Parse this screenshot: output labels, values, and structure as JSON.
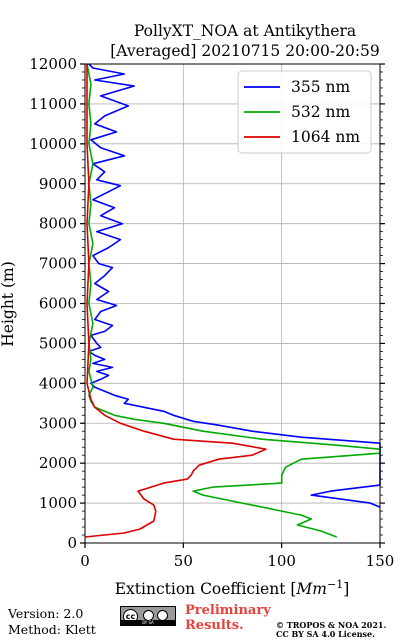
{
  "header": {
    "title_line1": "PollyXT_NOA at Antikythera",
    "title_line2": "[Averaged] 20210715 20:00-20:59"
  },
  "footer": {
    "version": "Version: 2.0",
    "method": "Method: Klett",
    "preliminary_line1": "Preliminary",
    "preliminary_line2": "Results.",
    "copyright_line1": "© TROPOS & NOA 2021.",
    "copyright_line2": "CC BY SA 4.0 License.",
    "license_badge": "cc-by-sa-icon"
  },
  "chart_data": {
    "type": "line",
    "title": "PollyXT_NOA at Antikythera [Averaged] 20210715 20:00-20:59",
    "xlabel": "Extinction Coefficient [Mm⁻¹]",
    "ylabel": "Height (m)",
    "xlim": [
      0,
      150
    ],
    "ylim": [
      0,
      12000
    ],
    "x_ticks": [
      0,
      50,
      100,
      150
    ],
    "y_ticks": [
      0,
      1000,
      2000,
      3000,
      4000,
      5000,
      6000,
      7000,
      8000,
      9000,
      10000,
      11000,
      12000
    ],
    "grid": true,
    "legend_position": "top-right",
    "series": [
      {
        "name": "355 nm",
        "color": "#0000ff",
        "points": [
          [
            150,
            900
          ],
          [
            145,
            1000
          ],
          [
            130,
            1100
          ],
          [
            115,
            1200
          ],
          [
            125,
            1300
          ],
          [
            150,
            1450
          ],
          [
            150,
            2500
          ],
          [
            110,
            2650
          ],
          [
            85,
            2800
          ],
          [
            68,
            2950
          ],
          [
            55,
            3050
          ],
          [
            45,
            3200
          ],
          [
            40,
            3300
          ],
          [
            30,
            3400
          ],
          [
            20,
            3500
          ],
          [
            22,
            3600
          ],
          [
            15,
            3700
          ],
          [
            10,
            3800
          ],
          [
            5,
            3900
          ],
          [
            3,
            4000
          ],
          [
            8,
            4100
          ],
          [
            12,
            4200
          ],
          [
            6,
            4300
          ],
          [
            14,
            4400
          ],
          [
            4,
            4500
          ],
          [
            10,
            4600
          ],
          [
            5,
            4700
          ],
          [
            2,
            4800
          ],
          [
            8,
            4900
          ],
          [
            6,
            5000
          ],
          [
            3,
            5200
          ],
          [
            10,
            5300
          ],
          [
            14,
            5450
          ],
          [
            5,
            5600
          ],
          [
            8,
            5800
          ],
          [
            16,
            5950
          ],
          [
            6,
            6100
          ],
          [
            12,
            6300
          ],
          [
            5,
            6500
          ],
          [
            10,
            6700
          ],
          [
            14,
            6900
          ],
          [
            7,
            7000
          ],
          [
            4,
            7200
          ],
          [
            12,
            7400
          ],
          [
            18,
            7600
          ],
          [
            6,
            7800
          ],
          [
            19,
            8000
          ],
          [
            8,
            8200
          ],
          [
            15,
            8400
          ],
          [
            4,
            8600
          ],
          [
            12,
            8800
          ],
          [
            18,
            8950
          ],
          [
            6,
            9100
          ],
          [
            10,
            9300
          ],
          [
            4,
            9500
          ],
          [
            20,
            9700
          ],
          [
            8,
            9900
          ],
          [
            3,
            10100
          ],
          [
            16,
            10300
          ],
          [
            5,
            10500
          ],
          [
            10,
            10700
          ],
          [
            22,
            10950
          ],
          [
            8,
            11200
          ],
          [
            25,
            11450
          ],
          [
            5,
            11600
          ],
          [
            20,
            11750
          ],
          [
            4,
            11900
          ],
          [
            2,
            12000
          ]
        ]
      },
      {
        "name": "532 nm",
        "color": "#00aa00",
        "points": [
          [
            128,
            150
          ],
          [
            120,
            300
          ],
          [
            108,
            450
          ],
          [
            115,
            600
          ],
          [
            110,
            700
          ],
          [
            100,
            800
          ],
          [
            80,
            1000
          ],
          [
            60,
            1200
          ],
          [
            55,
            1300
          ],
          [
            65,
            1400
          ],
          [
            100,
            1500
          ],
          [
            100,
            1700
          ],
          [
            102,
            1900
          ],
          [
            110,
            2100
          ],
          [
            150,
            2250
          ],
          [
            150,
            2350
          ],
          [
            128,
            2450
          ],
          [
            90,
            2600
          ],
          [
            60,
            2800
          ],
          [
            40,
            3000
          ],
          [
            25,
            3100
          ],
          [
            15,
            3200
          ],
          [
            10,
            3300
          ],
          [
            5,
            3400
          ],
          [
            3,
            3550
          ],
          [
            2,
            3700
          ],
          [
            4,
            3900
          ],
          [
            3,
            4100
          ],
          [
            2,
            4300
          ],
          [
            3,
            4600
          ],
          [
            2,
            5000
          ],
          [
            4,
            5500
          ],
          [
            2,
            6000
          ],
          [
            3,
            6500
          ],
          [
            2,
            7000
          ],
          [
            4,
            7500
          ],
          [
            2,
            8000
          ],
          [
            3,
            8500
          ],
          [
            2,
            9000
          ],
          [
            4,
            9500
          ],
          [
            2,
            10000
          ],
          [
            3,
            10500
          ],
          [
            2,
            11000
          ],
          [
            3,
            11500
          ],
          [
            1,
            12000
          ]
        ]
      },
      {
        "name": "1064 nm",
        "color": "#dd0000",
        "points": [
          [
            0,
            150
          ],
          [
            20,
            250
          ],
          [
            28,
            350
          ],
          [
            35,
            550
          ],
          [
            36,
            800
          ],
          [
            35,
            950
          ],
          [
            30,
            1100
          ],
          [
            27,
            1300
          ],
          [
            40,
            1500
          ],
          [
            52,
            1600
          ],
          [
            54,
            1700
          ],
          [
            55,
            1800
          ],
          [
            58,
            1950
          ],
          [
            68,
            2100
          ],
          [
            85,
            2200
          ],
          [
            92,
            2350
          ],
          [
            75,
            2500
          ],
          [
            45,
            2600
          ],
          [
            30,
            2800
          ],
          [
            18,
            3000
          ],
          [
            10,
            3200
          ],
          [
            5,
            3400
          ],
          [
            3,
            3600
          ],
          [
            2,
            3800
          ],
          [
            1,
            4000
          ],
          [
            2,
            5000
          ],
          [
            1,
            6000
          ],
          [
            2,
            7000
          ],
          [
            1,
            8000
          ],
          [
            2,
            9000
          ],
          [
            1,
            10000
          ],
          [
            1,
            11000
          ],
          [
            1,
            12000
          ]
        ]
      }
    ]
  }
}
